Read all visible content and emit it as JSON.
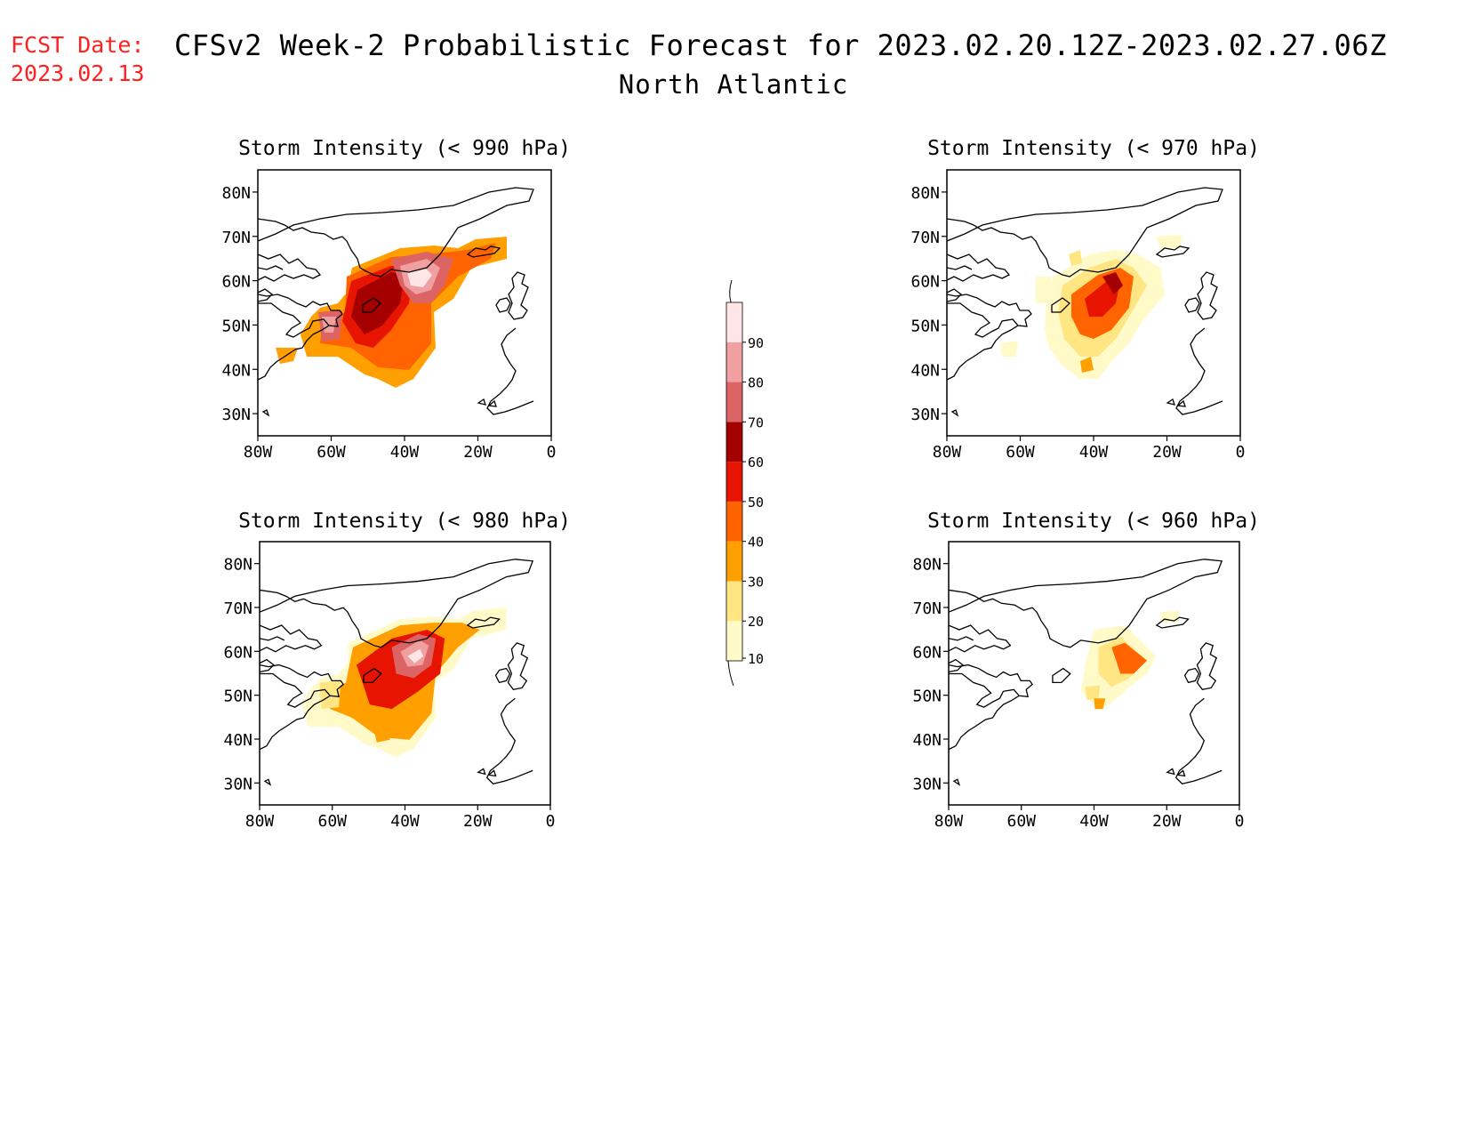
{
  "header": {
    "fcst_label": "FCST Date:",
    "fcst_date": "2023.02.13",
    "title": "CFSv2 Week-2 Probabilistic Forecast for 2023.02.20.12Z-2023.02.27.06Z",
    "subtitle": "North Atlantic"
  },
  "panels": [
    {
      "title": "Storm Intensity (< 990 hPa)"
    },
    {
      "title": "Storm Intensity (< 970 hPa)"
    },
    {
      "title": "Storm Intensity (< 980 hPa)"
    },
    {
      "title": "Storm Intensity (< 960 hPa)"
    }
  ],
  "axes": {
    "lat_ticks": [
      "80N",
      "70N",
      "60N",
      "50N",
      "40N",
      "30N"
    ],
    "lon_ticks": [
      "80W",
      "60W",
      "40W",
      "20W",
      "0"
    ]
  },
  "colorbar": {
    "levels": [
      "10",
      "20",
      "30",
      "40",
      "50",
      "60",
      "70",
      "80",
      "90"
    ],
    "colors": [
      "#fffac8",
      "#ffe682",
      "#ffa000",
      "#ff6400",
      "#e61400",
      "#a50000",
      "#dc6464",
      "#f0a0a0",
      "#ffe6e6"
    ]
  }
}
